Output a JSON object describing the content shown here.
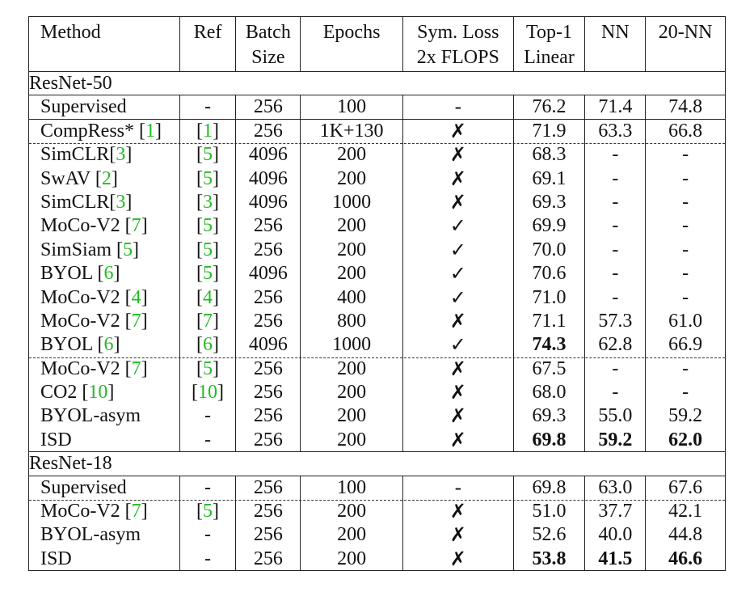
{
  "header": {
    "method": "Method",
    "ref": "Ref",
    "batch": [
      "Batch",
      "Size"
    ],
    "epochs": "Epochs",
    "sym": [
      "Sym. Loss",
      "2x FLOPS"
    ],
    "top1": [
      "Top-1",
      "Linear"
    ],
    "nn": "NN",
    "nn20": "20-NN"
  },
  "sections": [
    {
      "title": "ResNet-50",
      "rows": [
        {
          "method": "Supervised",
          "cite": "",
          "ref": "-",
          "refcite": "",
          "batch": "256",
          "epochs": "100",
          "sym": "-",
          "top1": "76.2",
          "nn": "71.4",
          "nn20": "74.8",
          "bold": [],
          "sep": "solid"
        },
        {
          "method": "CompRess* ",
          "cite": "1",
          "ref": "",
          "refcite": "1",
          "batch": "256",
          "epochs": "1K+130",
          "sym": "✗",
          "top1": "71.9",
          "nn": "63.3",
          "nn20": "66.8",
          "bold": [],
          "sep": "dashed"
        },
        {
          "method": "SimCLR",
          "cite": "3",
          "ref": "",
          "refcite": "5",
          "batch": "4096",
          "epochs": "200",
          "sym": "✗",
          "top1": "68.3",
          "nn": "-",
          "nn20": "-",
          "bold": [],
          "sep": ""
        },
        {
          "method": "SwAV ",
          "cite": "2",
          "ref": "",
          "refcite": "5",
          "batch": "4096",
          "epochs": "200",
          "sym": "✗",
          "top1": "69.1",
          "nn": "-",
          "nn20": "-",
          "bold": [],
          "sep": ""
        },
        {
          "method": "SimCLR",
          "cite": "3",
          "ref": "",
          "refcite": "3",
          "batch": "4096",
          "epochs": "1000",
          "sym": "✗",
          "top1": "69.3",
          "nn": "-",
          "nn20": "-",
          "bold": [],
          "sep": ""
        },
        {
          "method": "MoCo-V2 ",
          "cite": "7",
          "ref": "",
          "refcite": "5",
          "batch": "256",
          "epochs": "200",
          "sym": "✓",
          "top1": "69.9",
          "nn": "-",
          "nn20": "-",
          "bold": [],
          "sep": ""
        },
        {
          "method": "SimSiam ",
          "cite": "5",
          "ref": "",
          "refcite": "5",
          "batch": "256",
          "epochs": "200",
          "sym": "✓",
          "top1": "70.0",
          "nn": "-",
          "nn20": "-",
          "bold": [],
          "sep": ""
        },
        {
          "method": "BYOL ",
          "cite": "6",
          "ref": "",
          "refcite": "5",
          "batch": "4096",
          "epochs": "200",
          "sym": "✓",
          "top1": "70.6",
          "nn": "-",
          "nn20": "-",
          "bold": [],
          "sep": ""
        },
        {
          "method": "MoCo-V2 ",
          "cite": "4",
          "ref": "",
          "refcite": "4",
          "batch": "256",
          "epochs": "400",
          "sym": "✓",
          "top1": "71.0",
          "nn": "-",
          "nn20": "-",
          "bold": [],
          "sep": ""
        },
        {
          "method": "MoCo-V2 ",
          "cite": "7",
          "ref": "",
          "refcite": "7",
          "batch": "256",
          "epochs": "800",
          "sym": "✗",
          "top1": "71.1",
          "nn": "57.3",
          "nn20": "61.0",
          "bold": [],
          "sep": ""
        },
        {
          "method": "BYOL ",
          "cite": "6",
          "ref": "",
          "refcite": "6",
          "batch": "4096",
          "epochs": "1000",
          "sym": "✓",
          "top1": "74.3",
          "nn": "62.8",
          "nn20": "66.9",
          "bold": [
            "top1"
          ],
          "sep": "dashed"
        },
        {
          "method": "MoCo-V2 ",
          "cite": "7",
          "ref": "",
          "refcite": "5",
          "batch": "256",
          "epochs": "200",
          "sym": "✗",
          "top1": "67.5",
          "nn": "-",
          "nn20": "-",
          "bold": [],
          "sep": ""
        },
        {
          "method": "CO2 ",
          "cite": "10",
          "ref": "",
          "refcite": "10",
          "batch": "256",
          "epochs": "200",
          "sym": "✗",
          "top1": "68.0",
          "nn": "-",
          "nn20": "-",
          "bold": [],
          "sep": ""
        },
        {
          "method": "BYOL-asym",
          "cite": "",
          "ref": "-",
          "refcite": "",
          "batch": "256",
          "epochs": "200",
          "sym": "✗",
          "top1": "69.3",
          "nn": "55.0",
          "nn20": "59.2",
          "bold": [],
          "sep": ""
        },
        {
          "method": "ISD",
          "cite": "",
          "ref": "-",
          "refcite": "",
          "batch": "256",
          "epochs": "200",
          "sym": "✗",
          "top1": "69.8",
          "nn": "59.2",
          "nn20": "62.0",
          "bold": [
            "top1",
            "nn",
            "nn20"
          ],
          "sep": "solid"
        }
      ]
    },
    {
      "title": "ResNet-18",
      "rows": [
        {
          "method": "Supervised",
          "cite": "",
          "ref": "-",
          "refcite": "",
          "batch": "256",
          "epochs": "100",
          "sym": "-",
          "top1": "69.8",
          "nn": "63.0",
          "nn20": "67.6",
          "bold": [],
          "sep": "dashed"
        },
        {
          "method": "MoCo-V2 ",
          "cite": "7",
          "ref": "",
          "refcite": "5",
          "batch": "256",
          "epochs": "200",
          "sym": "✗",
          "top1": "51.0",
          "nn": "37.7",
          "nn20": "42.1",
          "bold": [],
          "sep": ""
        },
        {
          "method": "BYOL-asym",
          "cite": "",
          "ref": "-",
          "refcite": "",
          "batch": "256",
          "epochs": "200",
          "sym": "✗",
          "top1": "52.6",
          "nn": "40.0",
          "nn20": "44.8",
          "bold": [],
          "sep": ""
        },
        {
          "method": "ISD",
          "cite": "",
          "ref": "-",
          "refcite": "",
          "batch": "256",
          "epochs": "200",
          "sym": "✗",
          "top1": "53.8",
          "nn": "41.5",
          "nn20": "46.6",
          "bold": [
            "top1",
            "nn",
            "nn20"
          ],
          "sep": "solid"
        }
      ]
    }
  ]
}
